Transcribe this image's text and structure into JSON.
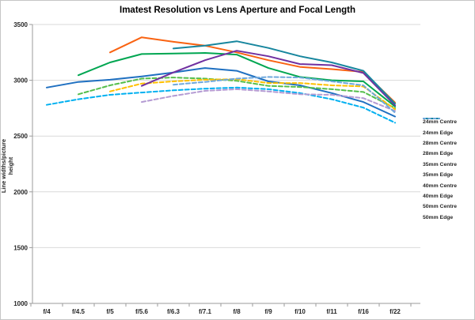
{
  "chart_data": {
    "type": "line",
    "title": "Imatest Resolution vs Lens Aperture and Focal Length",
    "xlabel": "",
    "ylabel": "Line widths/picture height",
    "ylim": [
      1000,
      3500
    ],
    "y_ticks": [
      3500,
      3000,
      2500,
      2000,
      1500,
      1000
    ],
    "grid": true,
    "legend_position": "right",
    "categories": [
      "f/4",
      "f/4.5",
      "f/5",
      "f/5.6",
      "f/6.3",
      "f/7.1",
      "f/8",
      "f/9",
      "f/10",
      "f/11",
      "f/16",
      "f/22"
    ],
    "series": [
      {
        "name": "24mm Centre",
        "color": "#1F70C1",
        "dash": false,
        "values": [
          2935,
          2985,
          3005,
          3035,
          3070,
          3110,
          3085,
          2990,
          2955,
          2885,
          2805,
          2675
        ]
      },
      {
        "name": "24mm Edge",
        "color": "#00B0F0",
        "dash": true,
        "values": [
          2780,
          2830,
          2870,
          2890,
          2910,
          2925,
          2935,
          2920,
          2885,
          2830,
          2755,
          2620
        ]
      },
      {
        "name": "28mm Centre",
        "color": "#00A651",
        "dash": false,
        "values": [
          null,
          3045,
          3160,
          3235,
          3240,
          3245,
          3230,
          3110,
          3030,
          3000,
          2990,
          2765
        ]
      },
      {
        "name": "28mm Edge",
        "color": "#55BE4B",
        "dash": true,
        "values": [
          null,
          2875,
          2955,
          3015,
          3025,
          3015,
          2995,
          2950,
          2940,
          2920,
          2895,
          2750
        ]
      },
      {
        "name": "35mm Centre",
        "color": "#F96312",
        "dash": false,
        "values": [
          null,
          null,
          3250,
          3385,
          3345,
          3310,
          3250,
          3180,
          3120,
          3100,
          3075,
          2800
        ]
      },
      {
        "name": "35mm Edge",
        "color": "#FFC000",
        "dash": true,
        "values": [
          null,
          null,
          2900,
          2970,
          2990,
          3005,
          3010,
          2975,
          2975,
          2955,
          2945,
          2740
        ]
      },
      {
        "name": "40mm Centre",
        "color": "#7030A0",
        "dash": false,
        "values": [
          null,
          null,
          null,
          2950,
          3070,
          3180,
          3265,
          3215,
          3145,
          3135,
          3065,
          2775
        ]
      },
      {
        "name": "40mm Edge",
        "color": "#B49BD3",
        "dash": true,
        "values": [
          null,
          null,
          null,
          2805,
          2860,
          2905,
          2920,
          2900,
          2875,
          2870,
          2840,
          2725
        ]
      },
      {
        "name": "50mm Centre",
        "color": "#17869E",
        "dash": false,
        "values": [
          null,
          null,
          null,
          null,
          3285,
          3310,
          3350,
          3290,
          3215,
          3160,
          3085,
          2790
        ]
      },
      {
        "name": "50mm Edge",
        "color": "#6FA8DC",
        "dash": true,
        "values": [
          null,
          null,
          null,
          null,
          2960,
          2985,
          3015,
          3030,
          3025,
          2990,
          2955,
          2710
        ]
      }
    ],
    "colors": {
      "axis": "#9B9B9B",
      "gridline": "#D9D9D9",
      "text": "#262626",
      "background": "#FFFFFF"
    }
  }
}
